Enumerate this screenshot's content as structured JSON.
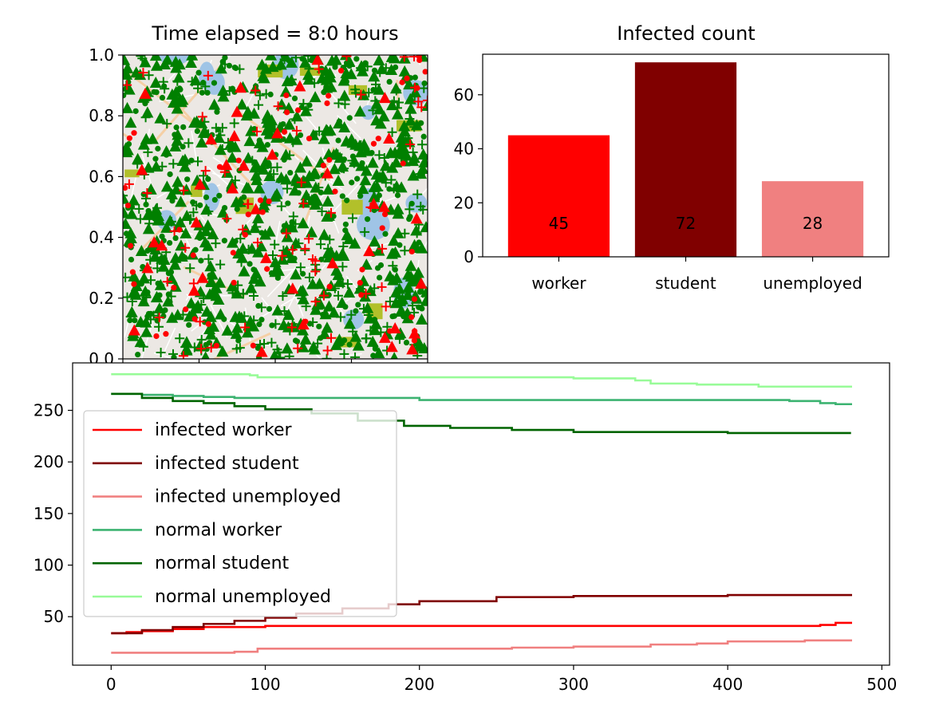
{
  "chart_data": [
    {
      "type": "scatter",
      "title": "Time elapsed = 8:0 hours",
      "xlim": [
        0,
        1
      ],
      "ylim": [
        0,
        1
      ],
      "yticks": [
        "0.0",
        "0.2",
        "0.4",
        "0.6",
        "0.8",
        "1.0"
      ],
      "background": "map",
      "marker_series": [
        {
          "marker": "triangle",
          "color": "#008000",
          "count": 520
        },
        {
          "marker": "dot",
          "color": "#008000",
          "count": 260
        },
        {
          "marker": "plus",
          "color": "#008000",
          "count": 240
        },
        {
          "marker": "triangle",
          "color": "#ff0000",
          "count": 40
        },
        {
          "marker": "dot",
          "color": "#ff0000",
          "count": 60
        },
        {
          "marker": "plus",
          "color": "#ff0000",
          "count": 60
        }
      ]
    },
    {
      "type": "bar",
      "title": "Infected count",
      "categories": [
        "worker",
        "student",
        "unemployed"
      ],
      "values": [
        45,
        72,
        28
      ],
      "value_labels": [
        "45",
        "72",
        "28"
      ],
      "colors": [
        "#ff0000",
        "#800000",
        "#f08080"
      ],
      "ylim": [
        0,
        75
      ],
      "yticks": [
        0,
        20,
        40,
        60
      ]
    },
    {
      "type": "line",
      "xlim": [
        -25,
        505
      ],
      "ylim": [
        3,
        296
      ],
      "xticks": [
        0,
        100,
        200,
        300,
        400,
        500
      ],
      "yticks": [
        50,
        100,
        150,
        200,
        250
      ],
      "legend_position": "left",
      "series": [
        {
          "name": "infected worker",
          "color": "#ff0000",
          "x": [
            0,
            10,
            20,
            40,
            60,
            80,
            100,
            120,
            150,
            200,
            300,
            440,
            460,
            470,
            480
          ],
          "y": [
            34,
            35,
            36,
            38,
            40,
            40,
            41,
            41,
            41,
            41,
            41,
            41,
            42,
            44,
            45
          ]
        },
        {
          "name": "infected student",
          "color": "#800000",
          "x": [
            0,
            20,
            40,
            60,
            80,
            100,
            120,
            150,
            180,
            200,
            250,
            300,
            400,
            480
          ],
          "y": [
            34,
            37,
            40,
            43,
            46,
            49,
            53,
            58,
            62,
            65,
            69,
            70,
            71,
            72
          ]
        },
        {
          "name": "infected unemployed",
          "color": "#f08080",
          "x": [
            0,
            60,
            80,
            95,
            200,
            260,
            300,
            350,
            380,
            400,
            450,
            480
          ],
          "y": [
            15,
            15,
            16,
            19,
            19,
            20,
            21,
            23,
            24,
            26,
            27,
            28
          ]
        },
        {
          "name": "normal worker",
          "color": "#3cb371",
          "x": [
            0,
            20,
            40,
            60,
            80,
            200,
            300,
            400,
            440,
            460,
            470,
            480
          ],
          "y": [
            266,
            265,
            264,
            263,
            262,
            260,
            260,
            260,
            259,
            257,
            256,
            255
          ]
        },
        {
          "name": "normal student",
          "color": "#006400",
          "x": [
            0,
            20,
            40,
            60,
            80,
            100,
            130,
            160,
            190,
            220,
            260,
            300,
            400,
            480
          ],
          "y": [
            266,
            262,
            259,
            257,
            254,
            251,
            247,
            240,
            235,
            233,
            231,
            229,
            228,
            228
          ]
        },
        {
          "name": "normal unemployed",
          "color": "#98fb98",
          "x": [
            0,
            90,
            95,
            200,
            300,
            340,
            350,
            380,
            420,
            480
          ],
          "y": [
            285,
            284,
            282,
            282,
            281,
            279,
            276,
            275,
            273,
            272
          ]
        }
      ]
    }
  ]
}
